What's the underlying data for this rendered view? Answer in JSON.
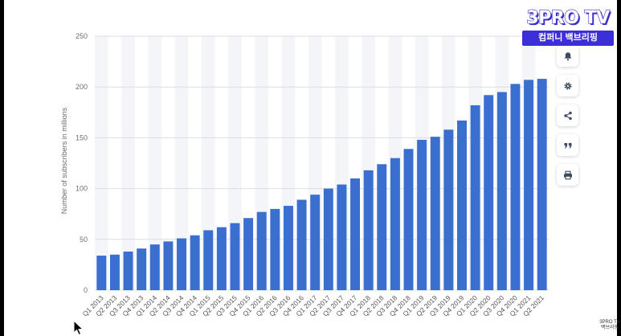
{
  "chart_data": {
    "type": "bar",
    "ylabel": "Number of subscribers in millions",
    "ylim": [
      0,
      250
    ],
    "yticks": [
      "0",
      "50",
      "100",
      "150",
      "200",
      "250"
    ],
    "grid": true,
    "bar_color": "#3a6fcf",
    "categories": [
      "Q1 2013",
      "Q2 2013",
      "Q3 2013",
      "Q4 2013",
      "Q1 2014",
      "Q2 2014",
      "Q3 2014",
      "Q4 2014",
      "Q1 2015",
      "Q2 2015",
      "Q3 2015",
      "Q4 2015",
      "Q1 2016",
      "Q2 2016",
      "Q3 2016",
      "Q4 2016",
      "Q1 2017",
      "Q2 2017",
      "Q3 2017",
      "Q4 2017",
      "Q1 2018",
      "Q2 2018",
      "Q3 2018",
      "Q4 2018",
      "Q1 2019",
      "Q2 2019",
      "Q3 2019",
      "Q4 2019",
      "Q1 2020",
      "Q2 2020",
      "Q3 2020",
      "Q4 2020",
      "Q1 2021",
      "Q2 2021"
    ],
    "values": [
      34,
      35,
      38,
      41,
      45,
      48,
      51,
      54,
      59,
      62,
      66,
      71,
      77,
      80,
      83,
      89,
      94,
      100,
      104,
      110,
      118,
      124,
      130,
      139,
      148,
      151,
      158,
      167,
      182,
      192,
      195,
      203,
      207,
      208
    ]
  },
  "toolbar": {
    "icons": [
      "bell-icon",
      "gear-icon",
      "share-icon",
      "quote-icon",
      "print-icon"
    ]
  },
  "overlay": {
    "brand_title": "3PRO TV",
    "brand_subtitle": "컴퍼니 백브리핑",
    "corner_logo_line1": "3PRO TV",
    "corner_logo_line2": "백브리핑"
  }
}
